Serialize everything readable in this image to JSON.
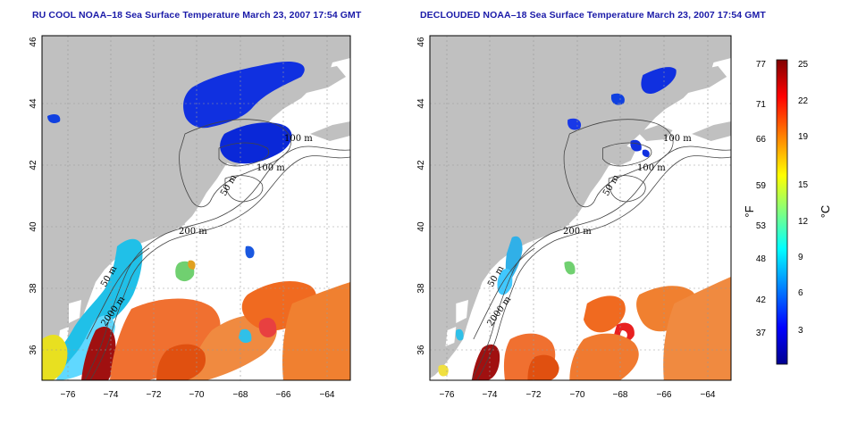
{
  "panels": [
    {
      "title": "RU COOL NOAA–18 Sea Surface Temperature March 23, 2007 17:54 GMT"
    },
    {
      "title": "DECLOUDED NOAA–18 Sea Surface Temperature March 23, 2007 17:54 GMT"
    }
  ],
  "axes": {
    "lon_ticks": [
      "−76",
      "−74",
      "−72",
      "−70",
      "−68",
      "−66",
      "−64"
    ],
    "lat_ticks": [
      "36",
      "38",
      "40",
      "42",
      "44",
      "46"
    ],
    "lon_range": [
      -77,
      -63
    ],
    "lat_range": [
      35,
      46
    ],
    "grid": "dotted"
  },
  "isobaths": {
    "labels": [
      "100 m",
      "100 m",
      "50 m",
      "200 m",
      "50 m",
      "2000 m"
    ]
  },
  "colorbar": {
    "fahrenheit_label": "°F",
    "celsius_label": "°C",
    "fahrenheit_ticks": [
      "77",
      "71",
      "66",
      "59",
      "53",
      "48",
      "42",
      "37"
    ],
    "celsius_ticks": [
      "25",
      "22",
      "19",
      "15",
      "12",
      "9",
      "6",
      "3"
    ],
    "range_c": [
      0,
      25.5
    ],
    "colors": [
      "#00008f",
      "#0000ff",
      "#0080ff",
      "#00ffff",
      "#80ff80",
      "#ffff00",
      "#ff8000",
      "#ff0000",
      "#800000"
    ]
  },
  "colors": {
    "land": "#c0c0c0",
    "title": "#1a1aa8"
  }
}
